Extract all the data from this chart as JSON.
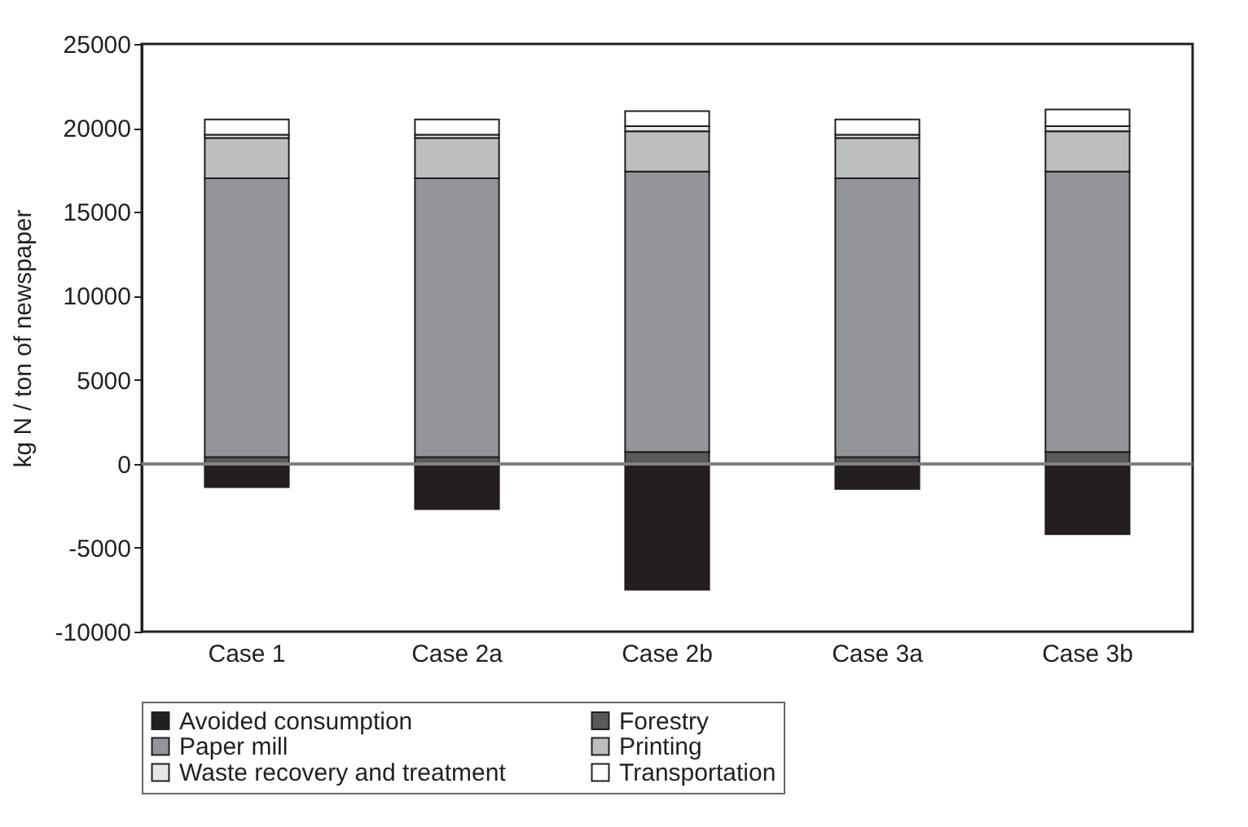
{
  "chart_data": {
    "type": "bar",
    "stacked": true,
    "ylabel": "kg N / ton of newspaper",
    "categories": [
      "Case 1",
      "Case 2a",
      "Case 2b",
      "Case 3a",
      "Case 3b"
    ],
    "series": [
      {
        "name": "Avoided consumption",
        "color": "#231f20",
        "values": [
          -1400,
          -2700,
          -7500,
          -1500,
          -4200
        ]
      },
      {
        "name": "Forestry",
        "color": "#58595b",
        "values": [
          400,
          400,
          700,
          400,
          700
        ]
      },
      {
        "name": "Paper mill",
        "color": "#939598",
        "values": [
          16600,
          16600,
          16700,
          16600,
          16700
        ]
      },
      {
        "name": "Printing",
        "color": "#bcbec0",
        "values": [
          2400,
          2400,
          2400,
          2400,
          2400
        ]
      },
      {
        "name": "Waste recovery and treatment",
        "color": "#e6e7e8",
        "values": [
          200,
          200,
          300,
          200,
          300
        ]
      },
      {
        "name": "Transportation",
        "color": "#ffffff",
        "values": [
          900,
          900,
          900,
          900,
          1000
        ]
      }
    ],
    "ylim": [
      -10000,
      25000
    ],
    "yticks": [
      -10000,
      -5000,
      0,
      5000,
      10000,
      15000,
      20000,
      25000
    ],
    "ref_lines": [
      {
        "axis": "y",
        "value": 0,
        "color": "#808080"
      }
    ],
    "legend": "bottom",
    "grid": false
  }
}
